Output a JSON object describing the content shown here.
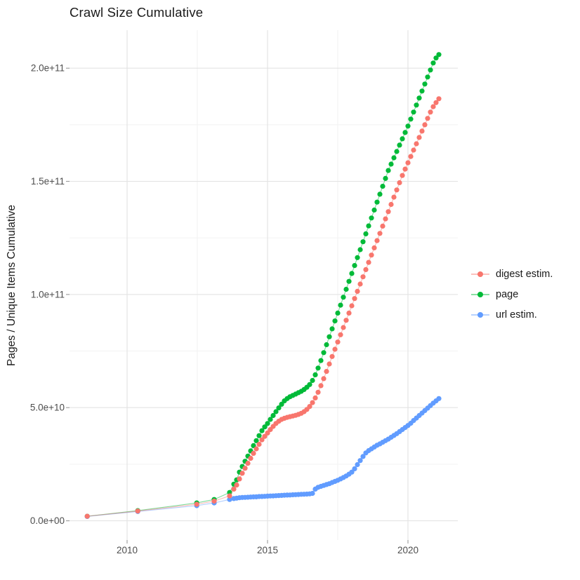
{
  "title": "Crawl Size Cumulative",
  "y_axis_title": "Pages / Unique Items Cumulative",
  "colors": {
    "digest": "#F8766D",
    "page": "#00BA38",
    "url": "#619CFF",
    "grid_major": "#e3e3e3",
    "grid_minor": "#f1f1f1",
    "tick_mark": "#9a9a9a",
    "axis_text": "#4d4d4d",
    "title_text": "#1a1a1a",
    "background": "#ffffff"
  },
  "x_ticks": [
    {
      "label": "2010",
      "value": 2010
    },
    {
      "label": "2015",
      "value": 2015
    },
    {
      "label": "2020",
      "value": 2020
    }
  ],
  "y_ticks": [
    {
      "label": "0.0e+00",
      "value_billions": 0
    },
    {
      "label": "5.0e+10",
      "value_billions": 50
    },
    {
      "label": "1.0e+11",
      "value_billions": 100
    },
    {
      "label": "1.5e+11",
      "value_billions": 150
    },
    {
      "label": "2.0e+11",
      "value_billions": 200
    }
  ],
  "legend": {
    "items": [
      {
        "label": "digest estim.",
        "series": "digest estim."
      },
      {
        "label": "page",
        "series": "page"
      },
      {
        "label": "url estim.",
        "series": "url estim."
      }
    ]
  },
  "chart_data": {
    "type": "scatter",
    "title": "Crawl Size Cumulative",
    "xlabel": "",
    "ylabel": "Pages / Unique Items Cumulative",
    "legend_position": "right",
    "grid": true,
    "x_unit": "year (decimal)",
    "y_unit": "items, billions (1e9)",
    "xlim": [
      2007.95,
      2021.775
    ],
    "ylim_billions": [
      -8.5,
      216.8
    ],
    "x_major_breaks": [
      2010,
      2015,
      2020
    ],
    "x_minor_breaks": [
      2012.5,
      2017.5
    ],
    "y_major_breaks_billions": [
      0,
      50,
      100,
      150,
      200
    ],
    "y_minor_breaks_billions": [
      25,
      75,
      125,
      175
    ],
    "x": [
      2008.58,
      2010.38,
      2012.48,
      2013.1,
      2013.65,
      2013.8,
      2013.9,
      2014.0,
      2014.1,
      2014.2,
      2014.3,
      2014.4,
      2014.5,
      2014.6,
      2014.7,
      2014.8,
      2014.9,
      2015.0,
      2015.1,
      2015.2,
      2015.3,
      2015.4,
      2015.5,
      2015.6,
      2015.7,
      2015.8,
      2015.9,
      2016.0,
      2016.1,
      2016.2,
      2016.3,
      2016.4,
      2016.5,
      2016.6,
      2016.7,
      2016.8,
      2016.9,
      2017.0,
      2017.1,
      2017.2,
      2017.3,
      2017.4,
      2017.5,
      2017.6,
      2017.7,
      2017.8,
      2017.9,
      2018.0,
      2018.1,
      2018.2,
      2018.3,
      2018.4,
      2018.5,
      2018.6,
      2018.7,
      2018.8,
      2018.9,
      2019.0,
      2019.1,
      2019.2,
      2019.3,
      2019.4,
      2019.5,
      2019.6,
      2019.7,
      2019.8,
      2019.9,
      2020.0,
      2020.1,
      2020.2,
      2020.3,
      2020.4,
      2020.5,
      2020.6,
      2020.7,
      2020.8,
      2020.9,
      2021.0,
      2021.1
    ],
    "series": [
      {
        "name": "digest estim.",
        "color": "#F8766D",
        "values_billions": [
          2.0,
          4.3,
          7.3,
          8.7,
          11.0,
          14.0,
          15.8,
          18.5,
          21.0,
          23.2,
          25.4,
          27.6,
          29.8,
          31.8,
          33.8,
          35.8,
          37.3,
          38.8,
          40.3,
          41.7,
          43.0,
          44.0,
          44.8,
          45.3,
          45.7,
          46.0,
          46.3,
          46.6,
          47.0,
          47.5,
          48.2,
          49.2,
          50.5,
          52.2,
          54.3,
          56.8,
          59.7,
          62.8,
          66.0,
          69.3,
          72.6,
          75.8,
          79.0,
          82.2,
          85.4,
          88.6,
          91.8,
          95.0,
          98.2,
          101.4,
          104.6,
          107.8,
          111.0,
          114.2,
          117.4,
          120.6,
          123.8,
          127.0,
          130.2,
          133.4,
          136.6,
          139.8,
          143.0,
          146.2,
          149.4,
          152.6,
          155.4,
          158.2,
          161.0,
          163.8,
          166.6,
          169.4,
          172.2,
          175.0,
          177.8,
          180.6,
          183.0,
          184.8,
          186.5
        ]
      },
      {
        "name": "page",
        "color": "#00BA38",
        "values_billions": [
          2.0,
          4.5,
          7.9,
          9.4,
          12.5,
          16.2,
          18.1,
          21.5,
          24.0,
          26.3,
          28.6,
          30.9,
          33.2,
          35.4,
          37.6,
          39.8,
          41.5,
          43.0,
          44.8,
          46.5,
          48.2,
          49.9,
          51.5,
          53.0,
          54.0,
          54.8,
          55.4,
          56.0,
          56.6,
          57.2,
          58.0,
          59.0,
          60.2,
          62.0,
          64.5,
          67.5,
          70.8,
          74.3,
          77.8,
          81.3,
          84.8,
          88.3,
          91.8,
          95.3,
          98.8,
          102.3,
          105.8,
          109.3,
          112.8,
          116.3,
          119.8,
          123.3,
          126.8,
          130.3,
          133.8,
          137.3,
          140.8,
          144.3,
          147.8,
          151.3,
          154.8,
          157.6,
          160.4,
          163.2,
          166.0,
          168.8,
          171.6,
          174.4,
          177.5,
          180.6,
          183.7,
          186.8,
          189.9,
          193.0,
          196.1,
          199.2,
          202.3,
          204.5,
          206.0
        ]
      },
      {
        "name": "url estim.",
        "color": "#619CFF",
        "values_billions": [
          1.9,
          4.1,
          6.7,
          7.9,
          9.4,
          9.8,
          10.0,
          10.2,
          10.3,
          10.35,
          10.4,
          10.5,
          10.55,
          10.6,
          10.7,
          10.75,
          10.8,
          10.9,
          10.95,
          11.0,
          11.1,
          11.15,
          11.2,
          11.3,
          11.35,
          11.4,
          11.5,
          11.55,
          11.6,
          11.7,
          11.75,
          11.8,
          11.9,
          12.1,
          14.0,
          14.8,
          15.2,
          15.6,
          16.0,
          16.4,
          16.9,
          17.4,
          17.9,
          18.5,
          19.1,
          19.8,
          20.6,
          21.5,
          23.0,
          24.8,
          26.6,
          28.4,
          30.0,
          31.0,
          31.8,
          32.6,
          33.4,
          34.0,
          34.7,
          35.4,
          36.1,
          36.9,
          37.7,
          38.5,
          39.4,
          40.3,
          41.2,
          42.1,
          43.1,
          44.3,
          45.4,
          46.5,
          47.6,
          48.7,
          49.8,
          50.9,
          52.0,
          53.0,
          54.0
        ]
      }
    ]
  }
}
